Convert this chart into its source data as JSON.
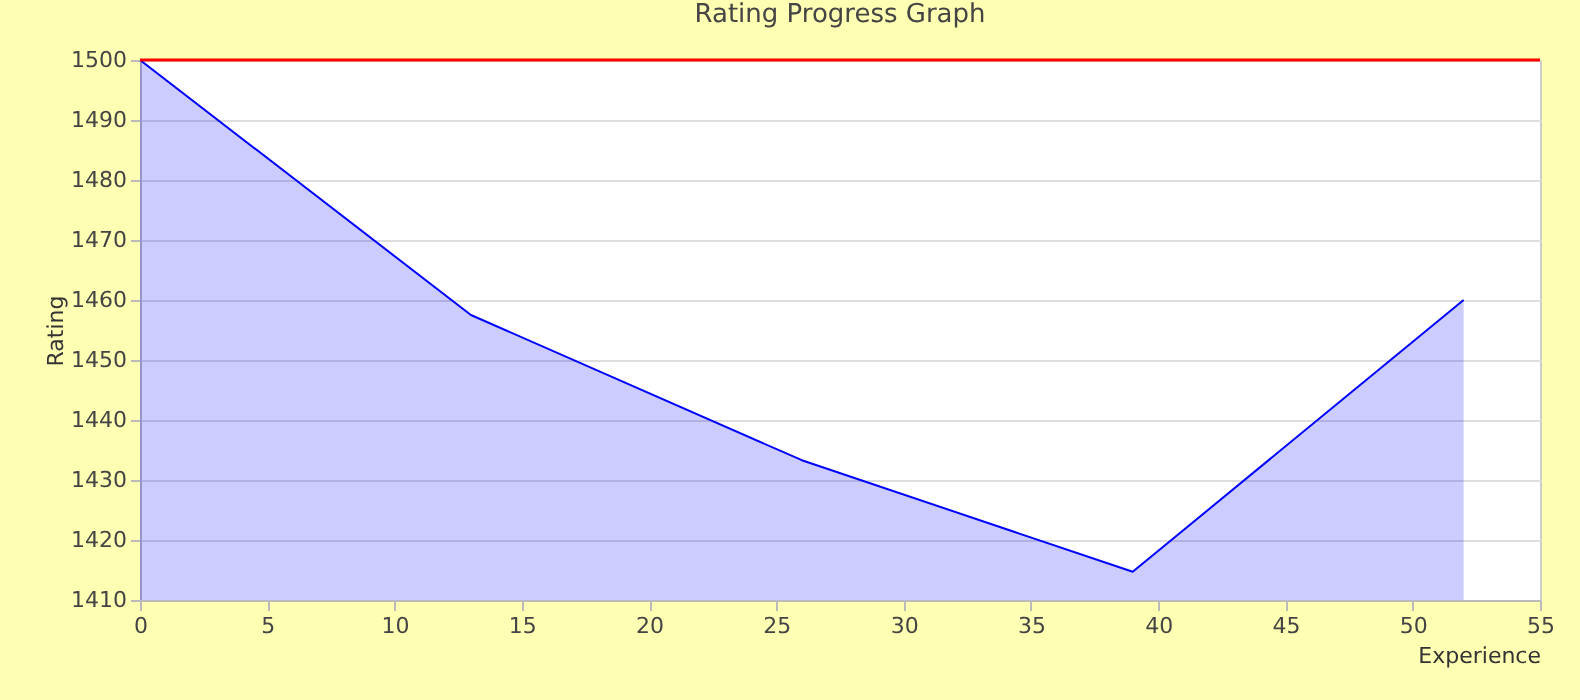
{
  "chart_data": {
    "type": "area",
    "title": "Rating Progress Graph",
    "xlabel": "Experience",
    "ylabel": "Rating",
    "x": [
      0,
      13,
      26,
      39,
      52
    ],
    "series": [
      {
        "color": "#0000ff",
        "values": [
          1500,
          1457.5,
          1433.3,
          1414.7,
          1460
        ]
      }
    ],
    "xlim": [
      0,
      55
    ],
    "xticks": [
      0,
      5,
      10,
      15,
      20,
      25,
      30,
      35,
      40,
      45,
      50,
      55
    ],
    "ylim": [
      1410,
      1500
    ],
    "yticks": [
      1410,
      1420,
      1430,
      1440,
      1450,
      1460,
      1470,
      1480,
      1490,
      1500
    ],
    "ref_lines": [
      {
        "axis": "y",
        "value": 1500,
        "color": "#ff0000"
      }
    ],
    "grid": "y"
  }
}
